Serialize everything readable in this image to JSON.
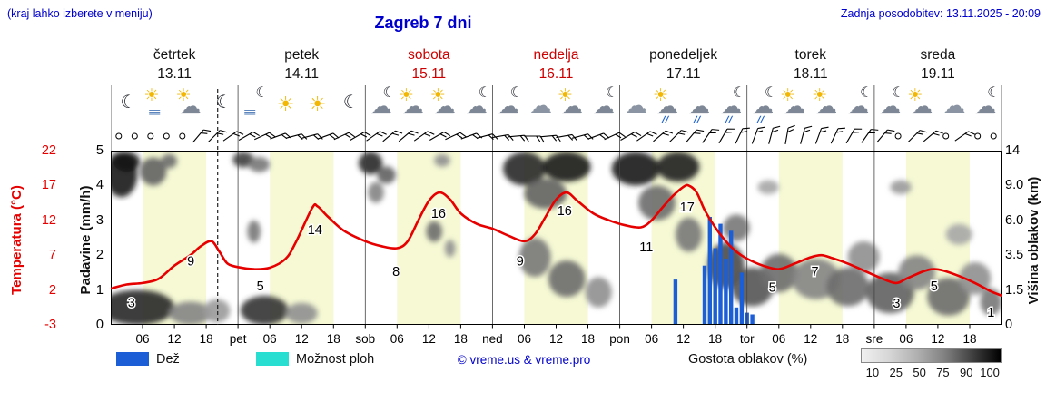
{
  "header": {
    "hint": "(kraj lahko izberete v meniju)",
    "title": "Zagreb 7 dni",
    "updated": "Zadnja posodobitev: 13.11.2025 - 20:09"
  },
  "axes": {
    "temp_label": "Temperatura (°C)",
    "precip_label": "Padavine (mm/h)",
    "cloud_label": "Višina oblakov (km)",
    "temp_ticks": [
      22,
      17,
      12,
      7,
      2,
      -3
    ],
    "precip_ticks": [
      5,
      4,
      3,
      2,
      1,
      0
    ],
    "cloud_ticks": [
      "14",
      "9.0",
      "6.0",
      "3.5",
      "1.5",
      "0"
    ]
  },
  "days": [
    {
      "name": "četrtek",
      "date": "13.11",
      "highlight": false
    },
    {
      "name": "petek",
      "date": "14.11",
      "highlight": false
    },
    {
      "name": "sobota",
      "date": "15.11",
      "highlight": true
    },
    {
      "name": "nedelja",
      "date": "16.11",
      "highlight": true
    },
    {
      "name": "ponedeljek",
      "date": "17.11",
      "highlight": false
    },
    {
      "name": "torek",
      "date": "18.11",
      "highlight": false
    },
    {
      "name": "sreda",
      "date": "19.11",
      "highlight": false
    }
  ],
  "x_axis": {
    "hour_labels": [
      "06",
      "12",
      "18"
    ],
    "day_abbrevs": [
      "pet",
      "sob",
      "ned",
      "pon",
      "tor",
      "sre"
    ]
  },
  "legend": {
    "rain_label": "Dež",
    "showers_label": "Možnost ploh",
    "copyright": "© vreme.us & vreme.pro",
    "cloud_density_label": "Gostota oblakov (%)",
    "density_ticks": [
      "10",
      "25",
      "50",
      "75",
      "90",
      "100"
    ]
  },
  "colors": {
    "accent_blue": "#0000cc",
    "temp_red": "#e60000",
    "rain_blue": "#1b5ed6",
    "showers_cyan": "#27ded1",
    "day_band": "#f6f9d4",
    "weekend_red": "#cc0000"
  },
  "chart_data": {
    "type": "meteogram",
    "hours_span": 168,
    "now_t": 20.15,
    "daylight_hours": [
      6,
      18
    ],
    "temp_axis_range": [
      -3,
      22
    ],
    "precip_axis_range": [
      0,
      5
    ],
    "cloud_axis_ticks_km": [
      0,
      1.5,
      3.5,
      6,
      9,
      14
    ],
    "temperature_c": [
      [
        0,
        2.2
      ],
      [
        3,
        2.8
      ],
      [
        6,
        3
      ],
      [
        9,
        3.6
      ],
      [
        12,
        5.5
      ],
      [
        15,
        7
      ],
      [
        17,
        8.3
      ],
      [
        19,
        9
      ],
      [
        20.5,
        7.5
      ],
      [
        22,
        5.8
      ],
      [
        24,
        5.3
      ],
      [
        27,
        5
      ],
      [
        30,
        5.2
      ],
      [
        33,
        6.5
      ],
      [
        35,
        9
      ],
      [
        38,
        13.8
      ],
      [
        39,
        14
      ],
      [
        41,
        12.5
      ],
      [
        44,
        10.5
      ],
      [
        48,
        9
      ],
      [
        51,
        8.3
      ],
      [
        54,
        8
      ],
      [
        56,
        9
      ],
      [
        58,
        12
      ],
      [
        60,
        14.8
      ],
      [
        62,
        16
      ],
      [
        64,
        15
      ],
      [
        66,
        13
      ],
      [
        69,
        11.5
      ],
      [
        72,
        10.8
      ],
      [
        75,
        9.8
      ],
      [
        78,
        9
      ],
      [
        80,
        10
      ],
      [
        82,
        12.5
      ],
      [
        84,
        15
      ],
      [
        86,
        16
      ],
      [
        88,
        14.8
      ],
      [
        91,
        13
      ],
      [
        94,
        12
      ],
      [
        97,
        11.3
      ],
      [
        100,
        11
      ],
      [
        102,
        12
      ],
      [
        104,
        13.8
      ],
      [
        106,
        15.5
      ],
      [
        108,
        16.8
      ],
      [
        109,
        17
      ],
      [
        110.5,
        16
      ],
      [
        112,
        13.5
      ],
      [
        114,
        11
      ],
      [
        116,
        9
      ],
      [
        118,
        7.5
      ],
      [
        120,
        6.5
      ],
      [
        123,
        5.5
      ],
      [
        126,
        5
      ],
      [
        129,
        5.8
      ],
      [
        132,
        6.7
      ],
      [
        134,
        7
      ],
      [
        136,
        6.6
      ],
      [
        139,
        5.8
      ],
      [
        142,
        4.8
      ],
      [
        145,
        3.8
      ],
      [
        148,
        3
      ],
      [
        150,
        3.6
      ],
      [
        153,
        4.6
      ],
      [
        155,
        5
      ],
      [
        157,
        4.8
      ],
      [
        160,
        4
      ],
      [
        163,
        3
      ],
      [
        166,
        1.8
      ],
      [
        168,
        1.2
      ]
    ],
    "temp_point_labels": [
      [
        3.9,
        0.2,
        "3"
      ],
      [
        15.1,
        6.2,
        "9"
      ],
      [
        28.2,
        2.6,
        "5"
      ],
      [
        38.5,
        10.7,
        "14"
      ],
      [
        53.8,
        4.7,
        "8"
      ],
      [
        61.8,
        13,
        "16"
      ],
      [
        77.2,
        6.2,
        "9"
      ],
      [
        85.6,
        13.4,
        "16"
      ],
      [
        101,
        8.2,
        "11"
      ],
      [
        108.7,
        13.9,
        "17"
      ],
      [
        124.8,
        2.4,
        "5"
      ],
      [
        132.8,
        4.7,
        "7"
      ],
      [
        148.2,
        0.1,
        "3"
      ],
      [
        155.3,
        2.6,
        "5"
      ],
      [
        166,
        -1.2,
        "1"
      ]
    ],
    "precip_bars_mm_h": [
      [
        106.5,
        1.3
      ],
      [
        112,
        1.7
      ],
      [
        113,
        3.1
      ],
      [
        114,
        2.2
      ],
      [
        115,
        2.9
      ],
      [
        116,
        1.9
      ],
      [
        117,
        2.7
      ],
      [
        118,
        0.5
      ],
      [
        119,
        1.5
      ],
      [
        120,
        0.35
      ],
      [
        121,
        0.3
      ]
    ],
    "cloud_blobs": [
      [
        2,
        11,
        6,
        6,
        0.9
      ],
      [
        3,
        12.5,
        5,
        3,
        0.95
      ],
      [
        8,
        11,
        5,
        4,
        0.6
      ],
      [
        11,
        12.5,
        3,
        2,
        0.55
      ],
      [
        5,
        0.7,
        14,
        1.6,
        0.85
      ],
      [
        15,
        0.5,
        8,
        1,
        0.45
      ],
      [
        20,
        0.6,
        5,
        1,
        0.35
      ],
      [
        25,
        12.8,
        4,
        2.4,
        0.75
      ],
      [
        28,
        12,
        4,
        2.2,
        0.5
      ],
      [
        27,
        5.2,
        2.5,
        1.6,
        0.5
      ],
      [
        29,
        0.6,
        9,
        1.3,
        0.8
      ],
      [
        36,
        0.5,
        6,
        0.9,
        0.4
      ],
      [
        49,
        12.2,
        4.5,
        3.2,
        0.85
      ],
      [
        52,
        10.5,
        3.5,
        2.5,
        0.6
      ],
      [
        50,
        8.5,
        3,
        2,
        0.45
      ],
      [
        61,
        5.2,
        3,
        1.5,
        0.55
      ],
      [
        62.5,
        12.6,
        3,
        1.8,
        0.4
      ],
      [
        64,
        4,
        2,
        1.2,
        0.4
      ],
      [
        78,
        11.5,
        8,
        5,
        0.85
      ],
      [
        86,
        11.8,
        9,
        4.5,
        0.92
      ],
      [
        82,
        8.5,
        8,
        3,
        0.6
      ],
      [
        80,
        3.5,
        6,
        2.5,
        0.5
      ],
      [
        86,
        2.2,
        7,
        2,
        0.55
      ],
      [
        92,
        1.5,
        5,
        1.5,
        0.4
      ],
      [
        99,
        11.5,
        9,
        5,
        0.9
      ],
      [
        107,
        11.8,
        8,
        4.5,
        0.88
      ],
      [
        103,
        7.5,
        7,
        3,
        0.55
      ],
      [
        109,
        5,
        5,
        2.5,
        0.5
      ],
      [
        116,
        3,
        7,
        2.8,
        0.7
      ],
      [
        121,
        1.8,
        8,
        2,
        0.65
      ],
      [
        118,
        5.5,
        5,
        2,
        0.5
      ],
      [
        126,
        2.5,
        7,
        2.2,
        0.55
      ],
      [
        124,
        9,
        4,
        1.5,
        0.3
      ],
      [
        133,
        2.2,
        9,
        2.2,
        0.45
      ],
      [
        139,
        1.8,
        8,
        2,
        0.55
      ],
      [
        142,
        3.5,
        6,
        2,
        0.4
      ],
      [
        147,
        1.5,
        9,
        2,
        0.6
      ],
      [
        149,
        9,
        4,
        1.5,
        0.35
      ],
      [
        152,
        2.5,
        7,
        2,
        0.45
      ],
      [
        158,
        1.3,
        8,
        1.8,
        0.55
      ],
      [
        163,
        2.2,
        6,
        1.8,
        0.4
      ],
      [
        166,
        1,
        4,
        1.2,
        0.5
      ],
      [
        160,
        5,
        5,
        1.5,
        0.3
      ]
    ],
    "weather_icons": [
      "moon",
      "fog-sun",
      "sun-cloud",
      "moon",
      "fog-moon",
      "sun",
      "sun",
      "moon",
      "moon-cloud",
      "sun-cloud",
      "sun-cloud",
      "moon-cloud",
      "cloud-moon",
      "cloud",
      "sun-cloud",
      "cloud-moon",
      "cloud",
      "rain-sun",
      "rain",
      "rain-moon",
      "rain-moon",
      "sun-cloud",
      "cloud-sun",
      "moon-cloud",
      "moon-cloud",
      "cloud-sun",
      "cloud",
      "moon-cloud"
    ],
    "wind_barbs_deg": [
      null,
      null,
      null,
      null,
      null,
      40,
      45,
      55,
      60,
      65,
      70,
      75,
      75,
      70,
      65,
      60,
      55,
      50,
      50,
      55,
      60,
      65,
      70,
      75,
      80,
      85,
      90,
      85,
      80,
      75,
      70,
      65,
      60,
      55,
      50,
      45,
      40,
      35,
      30,
      25,
      20,
      15,
      10,
      15,
      20,
      25,
      30,
      35,
      40,
      null,
      45,
      50,
      null,
      55,
      null,
      null
    ]
  }
}
